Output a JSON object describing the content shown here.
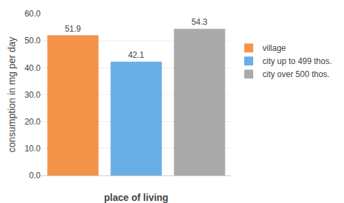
{
  "chart_data": {
    "type": "bar",
    "categories": [
      "village",
      "city up to 499 thos.",
      "city over 500 thos."
    ],
    "values": [
      51.9,
      42.1,
      54.3
    ],
    "colors": [
      "#F4934A",
      "#6aaee8",
      "#aaaaaa"
    ],
    "xlabel": "place of living",
    "ylabel": "consumption in mg per day",
    "ylim": [
      0,
      60
    ],
    "yticks": [
      {
        "value": 0,
        "label": "0.0"
      },
      {
        "value": 10,
        "label": "10.0"
      },
      {
        "value": 20,
        "label": "20.0"
      },
      {
        "value": 30,
        "label": "30.0"
      },
      {
        "value": 40,
        "label": "40.0"
      },
      {
        "value": 50,
        "label": "50.0"
      },
      {
        "value": 60,
        "label": "60.0"
      }
    ],
    "grid": true,
    "legend": "right",
    "data_labels": true,
    "tick_labels": "y"
  }
}
